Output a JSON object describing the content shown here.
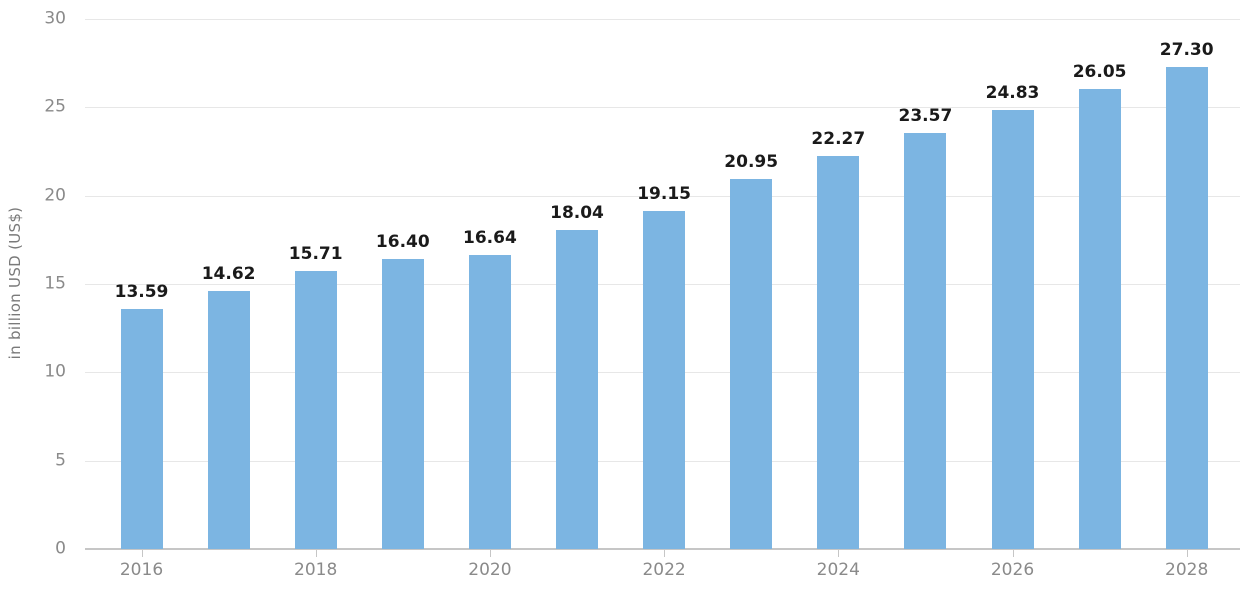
{
  "chart_data": {
    "type": "bar",
    "title": "",
    "xlabel": "",
    "ylabel": "in billion USD (US$)",
    "categories": [
      "2016",
      "2017",
      "2018",
      "2019",
      "2020",
      "2021",
      "2022",
      "2023",
      "2024",
      "2025",
      "2026",
      "2027",
      "2028"
    ],
    "values": [
      13.59,
      14.62,
      15.71,
      16.4,
      16.64,
      18.04,
      19.15,
      20.95,
      22.27,
      23.57,
      24.83,
      26.05,
      27.3
    ],
    "value_labels": [
      "13.59",
      "14.62",
      "15.71",
      "16.40",
      "16.64",
      "18.04",
      "19.15",
      "20.95",
      "22.27",
      "23.57",
      "24.83",
      "26.05",
      "27.30"
    ],
    "ylim": [
      0,
      30
    ],
    "yticks": [
      0,
      5,
      10,
      15,
      20,
      25,
      30
    ],
    "xtick_labels": [
      "2016",
      "2018",
      "2020",
      "2022",
      "2024",
      "2026",
      "2028"
    ],
    "xtick_indices": [
      0,
      2,
      4,
      6,
      8,
      10,
      12
    ],
    "grid": true,
    "legend": "none",
    "colors": {
      "bar": "#7cb5e2",
      "value_label": "#1a1a1a",
      "axis_text": "#8a8a8a",
      "y_title": "#7a7a7a",
      "gridline": "#e7e7e7",
      "baseline": "#c6c6c6"
    }
  }
}
